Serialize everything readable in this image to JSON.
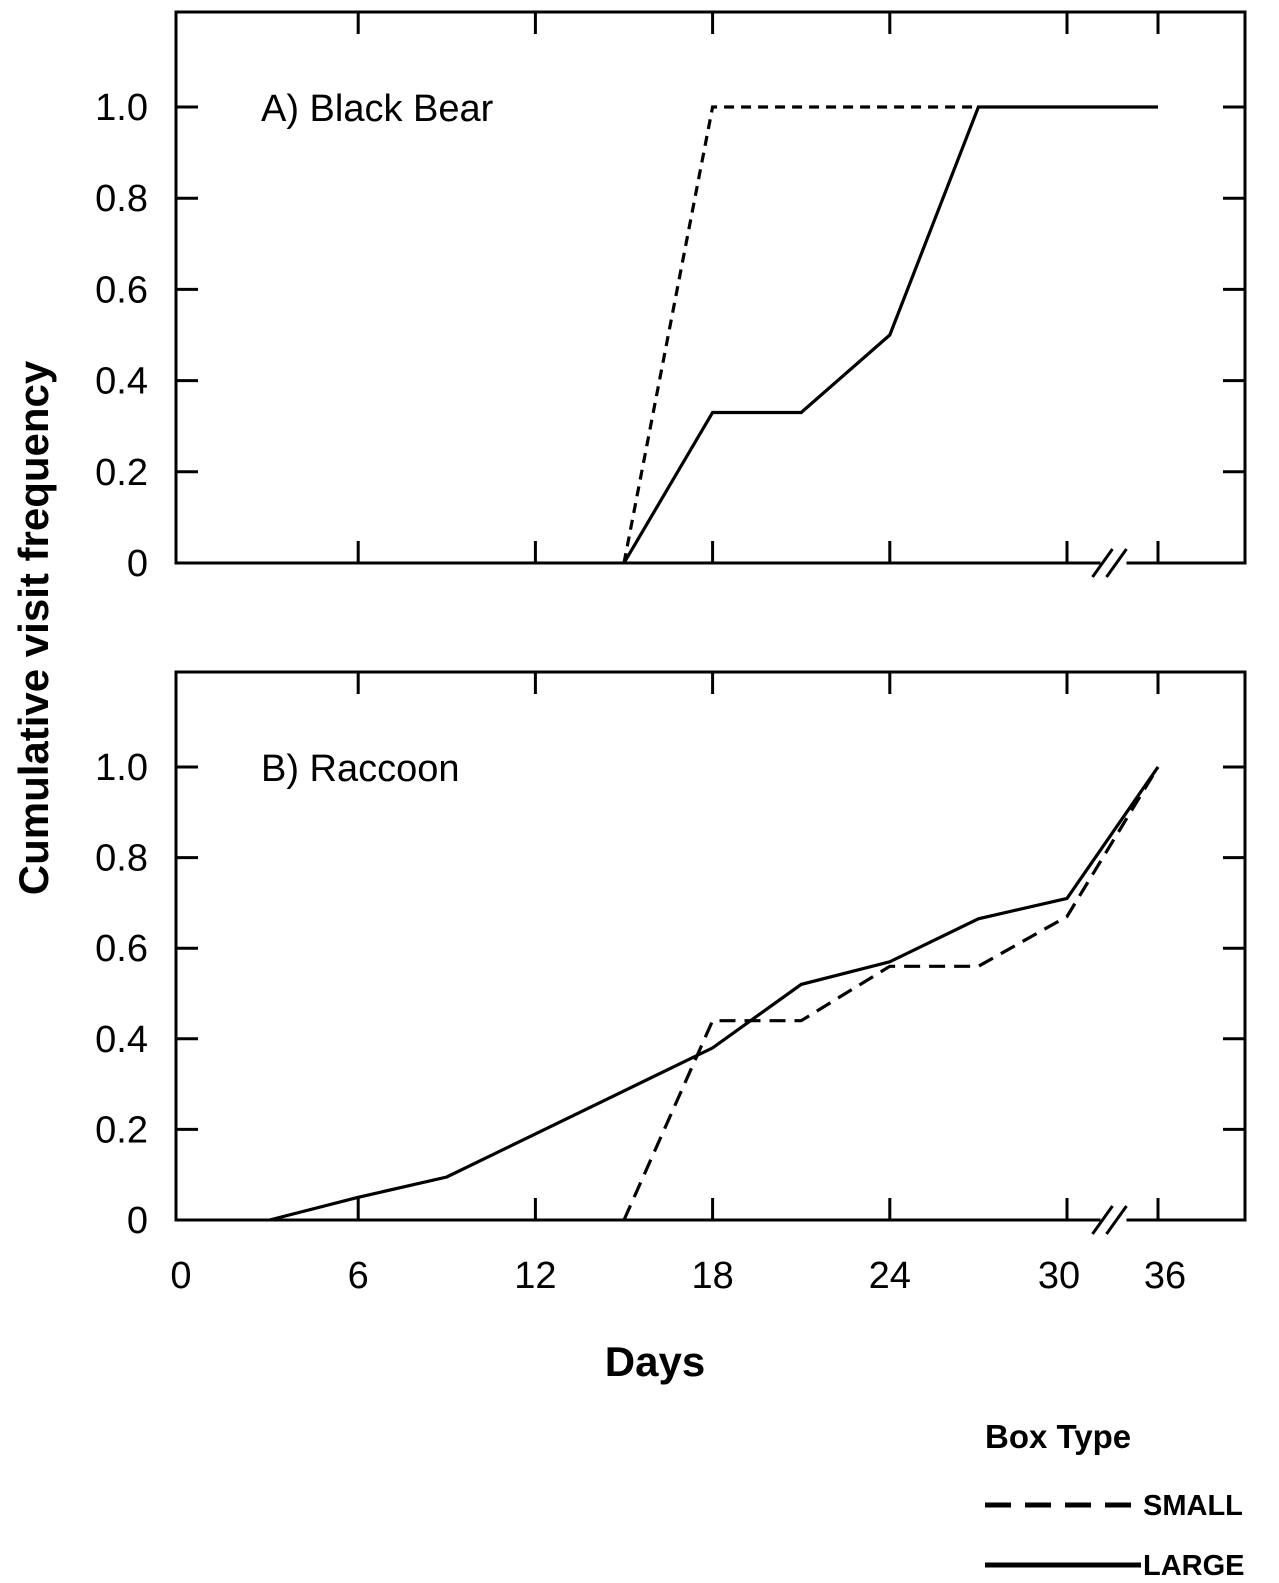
{
  "chart_data": {
    "type": "line",
    "xlabel": "Days",
    "ylabel": "Cumulative visit frequency",
    "xlim": [
      0,
      36
    ],
    "ylim": [
      0,
      1.2
    ],
    "x_ticks": [
      "0",
      "6",
      "12",
      "18",
      "24",
      "30",
      "36"
    ],
    "y_ticks": [
      "0",
      "0.2",
      "0.4",
      "0.6",
      "0.8",
      "1.0"
    ],
    "axis_break": "between 30 and 36",
    "grid": false,
    "legend": {
      "title": "Box Type",
      "position": "bottom-right",
      "entries": [
        {
          "label": "SMALL",
          "style": "dashed"
        },
        {
          "label": "LARGE",
          "style": "solid"
        }
      ]
    },
    "panels": [
      {
        "label": "A) Black Bear",
        "series": [
          {
            "name": "SMALL",
            "style": "dashed",
            "x": [
              15,
              18,
              27
            ],
            "y": [
              0,
              1.0,
              1.0
            ]
          },
          {
            "name": "LARGE",
            "style": "solid",
            "x": [
              15,
              18,
              21,
              24,
              27,
              36
            ],
            "y": [
              0,
              0.33,
              0.33,
              0.5,
              1.0,
              1.0
            ]
          }
        ]
      },
      {
        "label": "B) Raccoon",
        "series": [
          {
            "name": "SMALL",
            "style": "dashed",
            "x": [
              15,
              18,
              21,
              24,
              27,
              30,
              36
            ],
            "y": [
              0,
              0.44,
              0.44,
              0.56,
              0.56,
              0.67,
              1.0
            ]
          },
          {
            "name": "LARGE",
            "style": "solid",
            "x": [
              3,
              6,
              9,
              12,
              15,
              18,
              21,
              24,
              27,
              30,
              36
            ],
            "y": [
              0,
              0.05,
              0.095,
              0.19,
              0.285,
              0.38,
              0.52,
              0.57,
              0.665,
              0.71,
              1.0
            ]
          }
        ]
      }
    ]
  }
}
